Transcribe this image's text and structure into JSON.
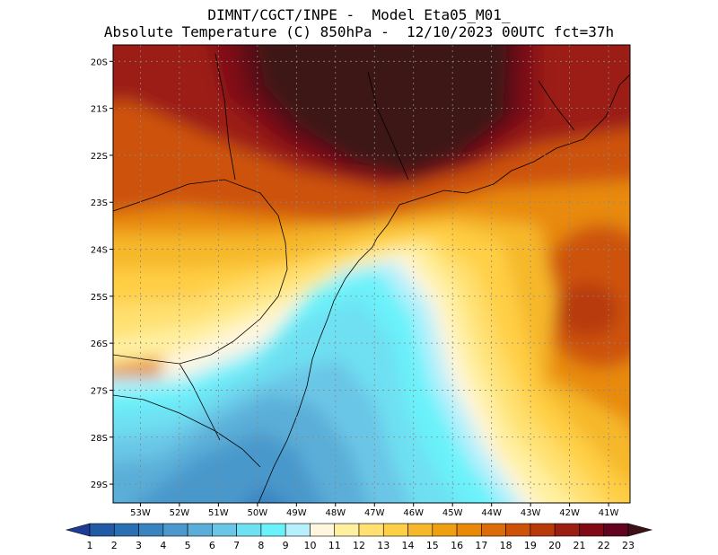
{
  "title": {
    "line1": "DIMNT/CGCT/INPE -  Model Eta05_M01_",
    "line2": "Absolute Temperature (C) 850hPa -  12/10/2023 00UTC fct=37h"
  },
  "axes": {
    "lat_labels": [
      "20S",
      "21S",
      "22S",
      "23S",
      "24S",
      "25S",
      "26S",
      "27S",
      "28S",
      "29S"
    ],
    "lon_labels": [
      "53W",
      "52W",
      "51W",
      "50W",
      "49W",
      "48W",
      "47W",
      "46W",
      "45W",
      "44W",
      "43W",
      "42W",
      "41W"
    ],
    "lat_range": [
      -19.65,
      -29.4
    ],
    "lon_range": [
      -53.7,
      -40.45
    ]
  },
  "colorbar": {
    "labels": [
      "1",
      "2",
      "3",
      "4",
      "5",
      "6",
      "7",
      "8",
      "9",
      "10",
      "11",
      "12",
      "13",
      "14",
      "15",
      "16",
      "17",
      "18",
      "19",
      "20",
      "21",
      "22",
      "23"
    ],
    "colors": [
      "#1e3c96",
      "#225aa6",
      "#2a6fb2",
      "#3784c0",
      "#4a98cc",
      "#5aaed8",
      "#6ac6e6",
      "#6ee0f2",
      "#6af2fa",
      "#b6f0fc",
      "#fff6e0",
      "#fff0a0",
      "#ffe070",
      "#ffcf45",
      "#f6b82a",
      "#efa012",
      "#e88a08",
      "#dc6c08",
      "#cd5208",
      "#b83a0a",
      "#9c1e12",
      "#800a16",
      "#620420",
      "#3c1216"
    ]
  }
}
